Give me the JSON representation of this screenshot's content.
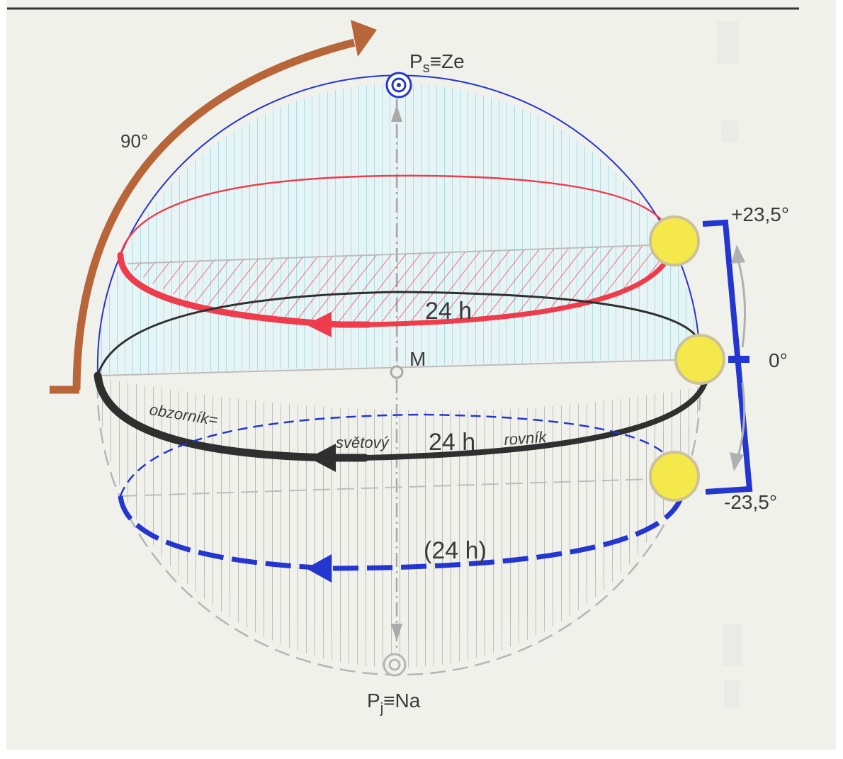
{
  "colors": {
    "paper": "#f1f1ec",
    "sky_fill": "#bfe6ea",
    "ground_fill": "#b8b8b8",
    "meridian": "#2436d0",
    "summer_path": "#ee3c4c",
    "equator": "#2f2f2f",
    "winter_path": "#2436d0",
    "arrow_90": "#b8653a",
    "sun": "#f5e84a",
    "sun_rim": "#c9c29a",
    "axis": "#a9a9a9"
  },
  "icons": {
    "sun": "sun-icon",
    "zenith_marker": "concentric-circle-icon",
    "nadir_marker": "concentric-circle-icon"
  },
  "labels": {
    "zenith": {
      "main": "P",
      "sub": "s",
      "rest": "≡Ze"
    },
    "nadir": {
      "main": "P",
      "sub": "j",
      "rest": "≡Na"
    },
    "center": "M",
    "angle_90": "90°",
    "dec_plus": "+23,5°",
    "dec_zero": "0°",
    "dec_minus": "-23,5°",
    "summer_period": "24 h",
    "equator_period": "24 h",
    "winter_period": "(24 h)",
    "horizon": "obzorník=",
    "celestial": "světový",
    "equator_word": "rovník"
  }
}
